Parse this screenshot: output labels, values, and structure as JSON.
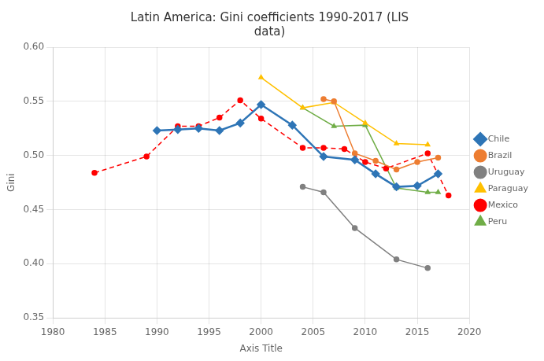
{
  "chart_data": {
    "type": "line",
    "title": "Latin America: Gini coefficients 1990-2017 (LIS\ndata)",
    "x_label": "Axis Title",
    "y_label": "Gini",
    "xlim": [
      1980,
      2020
    ],
    "ylim": [
      0.35,
      0.6
    ],
    "xticks": [
      1980,
      1985,
      1990,
      1995,
      2000,
      2005,
      2010,
      2015,
      2020
    ],
    "yticks": [
      0.35,
      {
        "value": 0.4,
        "label": "0.40"
      },
      0.45,
      {
        "value": 0.5,
        "label": "0.50"
      },
      0.55,
      {
        "value": 0.6,
        "label": "0.60"
      }
    ],
    "grid": true,
    "legend": "right",
    "series": [
      {
        "name": "Chile",
        "color": "#2E75B6",
        "marker": "diamond",
        "line_style": "solid",
        "x": [
          1990,
          1992,
          1994,
          1996,
          1998,
          2000,
          2003,
          2006,
          2009,
          2011,
          2013,
          2015,
          2017
        ],
        "values": [
          0.523,
          0.524,
          0.525,
          0.523,
          0.53,
          0.547,
          0.528,
          0.499,
          0.496,
          0.483,
          0.471,
          0.472,
          0.483
        ]
      },
      {
        "name": "Brazil",
        "color": "#ED7D31",
        "marker": "circle",
        "line_style": "solid",
        "x": [
          2006,
          2007,
          2009,
          2011,
          2013,
          2015,
          2017
        ],
        "values": [
          0.552,
          0.55,
          0.502,
          0.495,
          0.487,
          0.494,
          0.498
        ]
      },
      {
        "name": "Uruguay",
        "color": "#808080",
        "marker": "circle",
        "line_style": "solid",
        "x": [
          2004,
          2006,
          2009,
          2013,
          2016
        ],
        "values": [
          0.471,
          0.466,
          0.433,
          0.404,
          0.396
        ]
      },
      {
        "name": "Paraguay",
        "color": "#FFC000",
        "marker": "triangle",
        "line_style": "solid",
        "x": [
          2000,
          2004,
          2007,
          2010,
          2013,
          2016
        ],
        "values": [
          0.572,
          0.544,
          0.549,
          0.53,
          0.511,
          0.51
        ]
      },
      {
        "name": "Mexico",
        "color": "#FF0000",
        "marker": "circle",
        "line_style": "dashed",
        "x": [
          1984,
          1989,
          1992,
          1994,
          1996,
          1998,
          2000,
          2004,
          2006,
          2008,
          2010,
          2012,
          2016,
          2018
        ],
        "values": [
          0.484,
          0.499,
          0.527,
          0.527,
          0.535,
          0.551,
          0.534,
          0.507,
          0.507,
          0.506,
          0.494,
          0.488,
          0.502,
          0.463
        ]
      },
      {
        "name": "Peru",
        "color": "#70AD47",
        "marker": "triangle",
        "line_style": "solid",
        "x": [
          2004,
          2007,
          2010,
          2013,
          2016,
          2017
        ],
        "values": [
          0.544,
          0.527,
          0.528,
          0.47,
          0.466,
          0.466
        ]
      }
    ]
  }
}
